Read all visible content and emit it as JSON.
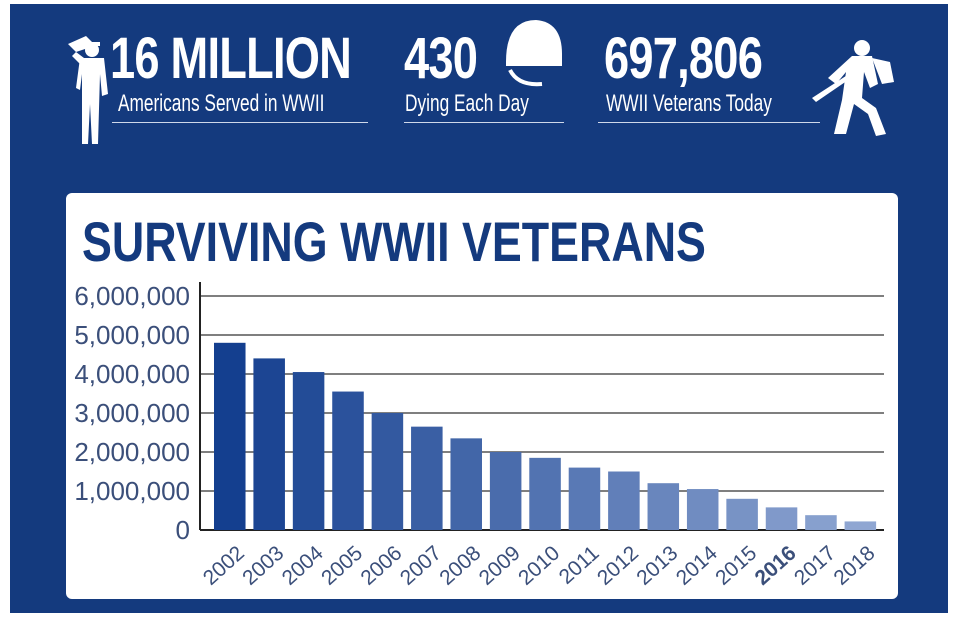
{
  "stats": {
    "served": {
      "number": "16 MILLION",
      "caption": "Americans Served in WWII",
      "icon": "saluting-soldier-icon"
    },
    "dying": {
      "number": "430",
      "caption": "Dying Each Day",
      "icon": "helmet-icon"
    },
    "today": {
      "number": "697,806",
      "caption": "WWII Veterans Today",
      "icon": "charging-soldier-icon"
    }
  },
  "colors": {
    "background": "#143a7e",
    "bar_dark": "#143f8f",
    "bar_light": "#8fa6d2",
    "highlight_year": "#c0141b",
    "axis_text": "#3b4f7a"
  },
  "chart_data": {
    "type": "bar",
    "title": "SURVIVING WWII VETERANS",
    "categories": [
      "2002",
      "2003",
      "2004",
      "2005",
      "2006",
      "2007",
      "2008",
      "2009",
      "2010",
      "2011",
      "2012",
      "2013",
      "2014",
      "2015",
      "2016",
      "2017",
      "2018"
    ],
    "values": [
      4800000,
      4400000,
      4050000,
      3550000,
      3000000,
      2650000,
      2350000,
      2000000,
      1850000,
      1600000,
      1500000,
      1200000,
      1050000,
      800000,
      580000,
      380000,
      220000
    ],
    "highlight_category": "2016",
    "yticks": [
      "0",
      "1,000,000",
      "2,000,000",
      "3,000,000",
      "4,000,000",
      "5,000,000",
      "6,000,000"
    ],
    "ylim": [
      0,
      6000000
    ],
    "grid": true,
    "legend": "none"
  }
}
